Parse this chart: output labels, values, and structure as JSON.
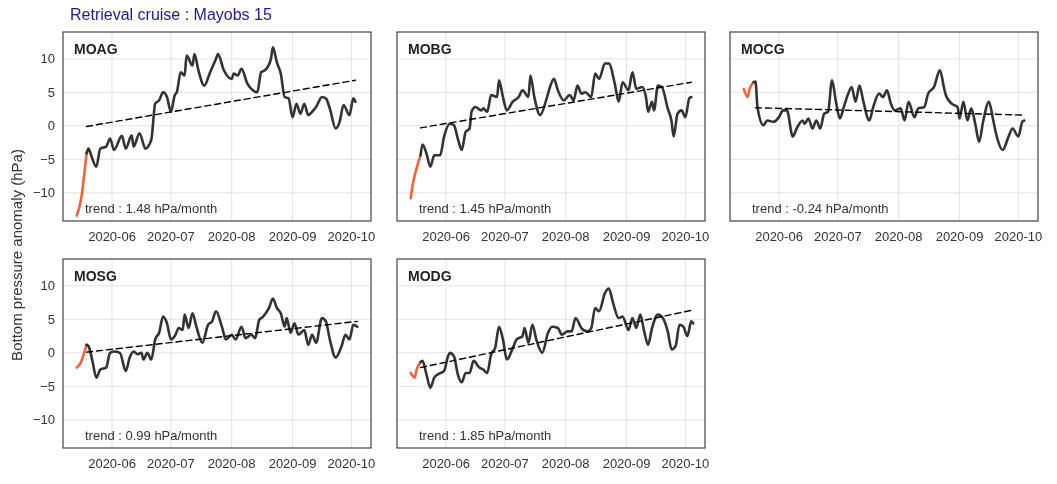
{
  "chart_data": [
    {
      "type": "line",
      "title": "MOAG",
      "subtitle": "Retrieval cruise : Mayobs 15",
      "ylabel": "Bottom pressure anomaly (hPa)",
      "annotations": [
        "trend : 1.48 hPa/month"
      ],
      "xlim": [
        "2020-05-07",
        "2020-10-11"
      ],
      "xticks": [
        "2020-06",
        "2020-07",
        "2020-08",
        "2020-09",
        "2020-10"
      ],
      "ylim": [
        -14.2,
        14
      ],
      "yticks": [
        {
          "value": -10,
          "label": "−10"
        },
        {
          "value": -5,
          "label": "−5"
        },
        0,
        5,
        10
      ],
      "grid": true,
      "marker": "none",
      "series": [
        {
          "color": "#f4623a",
          "x": [
            "2020-05-14",
            "2020-05-16",
            "2020-05-19"
          ],
          "values": [
            -13.4,
            -11.3,
            -4.1
          ]
        },
        {
          "color": "#333333",
          "x": [
            "2020-05-19",
            "2020-05-20",
            "2020-05-21",
            "2020-05-24",
            "2020-05-26",
            "2020-05-29",
            "2020-05-31",
            "2020-06-02",
            "2020-06-06",
            "2020-06-08",
            "2020-06-11",
            "2020-06-12",
            "2020-06-15",
            "2020-06-18",
            "2020-06-21",
            "2020-06-23",
            "2020-06-25",
            "2020-06-27",
            "2020-06-29",
            "2020-07-01",
            "2020-07-03",
            "2020-07-04",
            "2020-07-06",
            "2020-07-08",
            "2020-07-09",
            "2020-07-12",
            "2020-07-13",
            "2020-07-15",
            "2020-07-18",
            "2020-07-21",
            "2020-07-24",
            "2020-07-25",
            "2020-07-28",
            "2020-08-01",
            "2020-08-02",
            "2020-08-04",
            "2020-08-06",
            "2020-08-09",
            "2020-08-11",
            "2020-08-14",
            "2020-08-16",
            "2020-08-18",
            "2020-08-21",
            "2020-08-22",
            "2020-08-24",
            "2020-08-26",
            "2020-08-28",
            "2020-08-30",
            "2020-09-01",
            "2020-09-03",
            "2020-09-05",
            "2020-09-07",
            "2020-09-09",
            "2020-09-11",
            "2020-09-13",
            "2020-09-16",
            "2020-09-18",
            "2020-09-20",
            "2020-09-23",
            "2020-09-25",
            "2020-09-27",
            "2020-09-30",
            "2020-10-02",
            "2020-10-03"
          ],
          "values": [
            -4.1,
            -3.4,
            -4.1,
            -6.1,
            -3.4,
            -3.1,
            -1.9,
            -3.6,
            -1.5,
            -3.4,
            -1.4,
            -3.1,
            -1.1,
            -3.4,
            -2.1,
            3.3,
            3.8,
            5.0,
            4.3,
            2.1,
            4.6,
            5.0,
            8.0,
            7.5,
            10.5,
            9.0,
            10.7,
            8.3,
            6.0,
            8.0,
            10.0,
            10.7,
            8.3,
            7.0,
            7.8,
            7.5,
            8.5,
            6.3,
            5.5,
            5.0,
            8.0,
            8.3,
            10.0,
            11.7,
            9.5,
            7.8,
            4.3,
            4.1,
            1.3,
            3.3,
            1.8,
            3.3,
            1.6,
            2.1,
            2.8,
            4.3,
            4.1,
            2.6,
            -0.4,
            0.6,
            3.1,
            1.6,
            4.1,
            3.6
          ]
        },
        {
          "type": "line",
          "color": "#000000",
          "line_style": "dashed",
          "x": [
            "2020-05-19",
            "2020-10-03"
          ],
          "values": [
            -0.1,
            6.8
          ]
        }
      ]
    },
    {
      "type": "line",
      "title": "MOBG",
      "annotations": [
        "trend : 1.45 hPa/month"
      ],
      "xlim": [
        "2020-05-07",
        "2020-10-11"
      ],
      "xticks": [
        "2020-06",
        "2020-07",
        "2020-08",
        "2020-09",
        "2020-10"
      ],
      "ylim": [
        -14.2,
        14
      ],
      "yticks": [
        {
          "value": -10,
          "label": null
        },
        {
          "value": -5,
          "label": null
        },
        {
          "value": 0,
          "label": null
        },
        {
          "value": 5,
          "label": null
        },
        {
          "value": 10,
          "label": null
        }
      ],
      "tick_labels": "x",
      "grid": true,
      "marker": "none",
      "series": [
        {
          "color": "#f4623a",
          "x": [
            "2020-05-14",
            "2020-05-15",
            "2020-05-17",
            "2020-05-19"
          ],
          "values": [
            -10.8,
            -8.8,
            -6.3,
            -4.4
          ]
        },
        {
          "color": "#333333",
          "x": [
            "2020-05-19",
            "2020-05-20",
            "2020-05-22",
            "2020-05-24",
            "2020-05-26",
            "2020-05-29",
            "2020-05-31",
            "2020-06-03",
            "2020-06-05",
            "2020-06-07",
            "2020-06-09",
            "2020-06-11",
            "2020-06-13",
            "2020-06-14",
            "2020-06-16",
            "2020-06-19",
            "2020-06-20",
            "2020-06-22",
            "2020-06-24",
            "2020-06-27",
            "2020-06-28",
            "2020-06-30",
            "2020-07-02",
            "2020-07-05",
            "2020-07-08",
            "2020-07-10",
            "2020-07-13",
            "2020-07-14",
            "2020-07-16",
            "2020-07-19",
            "2020-07-22",
            "2020-07-24",
            "2020-07-26",
            "2020-07-28",
            "2020-07-31",
            "2020-08-03",
            "2020-08-05",
            "2020-08-07",
            "2020-08-09",
            "2020-08-11",
            "2020-08-14",
            "2020-08-16",
            "2020-08-18",
            "2020-08-21",
            "2020-08-23",
            "2020-08-26",
            "2020-08-28",
            "2020-08-30",
            "2020-09-02",
            "2020-09-04",
            "2020-09-06",
            "2020-09-09",
            "2020-09-11",
            "2020-09-12",
            "2020-09-14",
            "2020-09-15",
            "2020-09-17",
            "2020-09-19",
            "2020-09-22",
            "2020-09-24",
            "2020-09-25",
            "2020-09-27",
            "2020-09-29",
            "2020-10-01",
            "2020-10-03",
            "2020-10-04"
          ],
          "values": [
            -4.4,
            -2.8,
            -4.1,
            -6.1,
            -4.4,
            -4.4,
            -1.6,
            0.3,
            0.1,
            -1.9,
            -3.6,
            -0.9,
            -0.4,
            2.1,
            2.8,
            2.3,
            2.6,
            2.1,
            4.6,
            4.3,
            6.8,
            4.3,
            2.3,
            3.6,
            4.3,
            5.3,
            4.3,
            7.5,
            4.3,
            1.6,
            3.8,
            5.8,
            7.0,
            5.3,
            3.8,
            4.6,
            3.8,
            6.0,
            4.8,
            5.0,
            4.3,
            7.8,
            7.0,
            9.3,
            9.3,
            6.3,
            3.6,
            6.5,
            5.3,
            8.0,
            5.5,
            5.8,
            4.1,
            2.1,
            3.6,
            2.3,
            6.0,
            5.8,
            2.6,
            0.6,
            -1.6,
            1.8,
            2.3,
            1.3,
            4.1,
            4.3
          ]
        },
        {
          "type": "line",
          "color": "#000000",
          "line_style": "dashed",
          "x": [
            "2020-05-19",
            "2020-10-04"
          ],
          "values": [
            -0.3,
            6.5
          ]
        }
      ]
    },
    {
      "type": "line",
      "title": "MOCG",
      "annotations": [
        "trend : -0.24 hPa/month"
      ],
      "xlim": [
        "2020-05-07",
        "2020-10-11"
      ],
      "xticks": [
        "2020-06",
        "2020-07",
        "2020-08",
        "2020-09",
        "2020-10"
      ],
      "ylim": [
        -14.2,
        14
      ],
      "yticks": [
        {
          "value": -10,
          "label": null
        },
        {
          "value": -5,
          "label": null
        },
        {
          "value": 0,
          "label": null
        },
        {
          "value": 5,
          "label": null
        },
        {
          "value": 10,
          "label": null
        }
      ],
      "tick_labels": "x",
      "grid": true,
      "marker": "none",
      "series": [
        {
          "color": "#f4623a",
          "x": [
            "2020-05-14",
            "2020-05-16",
            "2020-05-17",
            "2020-05-19"
          ],
          "values": [
            5.5,
            4.3,
            5.5,
            6.5
          ]
        },
        {
          "color": "#333333",
          "x": [
            "2020-05-19",
            "2020-05-20",
            "2020-05-21",
            "2020-05-24",
            "2020-05-26",
            "2020-05-29",
            "2020-06-01",
            "2020-06-03",
            "2020-06-05",
            "2020-06-08",
            "2020-06-10",
            "2020-06-13",
            "2020-06-14",
            "2020-06-16",
            "2020-06-18",
            "2020-06-20",
            "2020-06-22",
            "2020-06-24",
            "2020-06-26",
            "2020-06-28",
            "2020-06-30",
            "2020-07-02",
            "2020-07-04",
            "2020-07-06",
            "2020-07-08",
            "2020-07-10",
            "2020-07-12",
            "2020-07-14",
            "2020-07-17",
            "2020-07-19",
            "2020-07-22",
            "2020-07-24",
            "2020-07-26",
            "2020-07-28",
            "2020-07-30",
            "2020-08-02",
            "2020-08-04",
            "2020-08-06",
            "2020-08-09",
            "2020-08-11",
            "2020-08-14",
            "2020-08-16",
            "2020-08-19",
            "2020-08-22",
            "2020-08-24",
            "2020-08-25",
            "2020-08-28",
            "2020-08-31",
            "2020-09-01",
            "2020-09-03",
            "2020-09-05",
            "2020-09-07",
            "2020-09-09",
            "2020-09-11",
            "2020-09-13",
            "2020-09-16",
            "2020-09-18",
            "2020-09-20",
            "2020-09-23",
            "2020-09-26",
            "2020-09-28",
            "2020-10-01",
            "2020-10-03",
            "2020-10-04"
          ],
          "values": [
            6.5,
            6.6,
            2.8,
            0.1,
            0.8,
            0.6,
            1.3,
            2.3,
            2.3,
            -1.6,
            -0.4,
            0.8,
            0.3,
            1.1,
            -0.4,
            0.8,
            -0.4,
            1.8,
            2.1,
            6.8,
            3.6,
            1.1,
            2.8,
            4.6,
            5.8,
            3.6,
            6.0,
            3.6,
            0.8,
            2.8,
            4.8,
            4.3,
            5.3,
            3.3,
            2.3,
            2.6,
            0.8,
            3.6,
            1.3,
            2.6,
            2.8,
            4.8,
            5.8,
            8.3,
            5.8,
            4.6,
            3.3,
            2.8,
            1.1,
            3.6,
            0.8,
            2.6,
            0.3,
            -2.4,
            0.6,
            3.6,
            1.1,
            -1.6,
            -3.6,
            -1.6,
            -0.4,
            -1.6,
            0.6,
            0.8
          ]
        },
        {
          "type": "line",
          "color": "#000000",
          "line_style": "dashed",
          "x": [
            "2020-05-20",
            "2020-10-04"
          ],
          "values": [
            2.7,
            1.6
          ]
        }
      ]
    },
    {
      "type": "line",
      "title": "MOSG",
      "annotations": [
        "trend : 0.99 hPa/month"
      ],
      "xlim": [
        "2020-05-07",
        "2020-10-11"
      ],
      "xticks": [
        "2020-06",
        "2020-07",
        "2020-08",
        "2020-09",
        "2020-10"
      ],
      "ylim": [
        -14.2,
        14
      ],
      "yticks": [
        {
          "value": -10,
          "label": "−10"
        },
        {
          "value": -5,
          "label": "−5"
        },
        0,
        5,
        10
      ],
      "grid": true,
      "marker": "none",
      "series": [
        {
          "color": "#f4623a",
          "x": [
            "2020-05-14",
            "2020-05-16",
            "2020-05-18",
            "2020-05-19"
          ],
          "values": [
            -2.2,
            -1.5,
            0.2,
            1.2
          ]
        },
        {
          "color": "#333333",
          "x": [
            "2020-05-19",
            "2020-05-20",
            "2020-05-22",
            "2020-05-24",
            "2020-05-26",
            "2020-05-29",
            "2020-05-31",
            "2020-06-02",
            "2020-06-05",
            "2020-06-08",
            "2020-06-10",
            "2020-06-12",
            "2020-06-14",
            "2020-06-16",
            "2020-06-17",
            "2020-06-19",
            "2020-06-21",
            "2020-06-23",
            "2020-06-25",
            "2020-06-27",
            "2020-06-29",
            "2020-07-01",
            "2020-07-03",
            "2020-07-05",
            "2020-07-07",
            "2020-07-08",
            "2020-07-10",
            "2020-07-12",
            "2020-07-14",
            "2020-07-17",
            "2020-07-20",
            "2020-07-22",
            "2020-07-24",
            "2020-07-27",
            "2020-07-29",
            "2020-08-01",
            "2020-08-03",
            "2020-08-06",
            "2020-08-08",
            "2020-08-11",
            "2020-08-13",
            "2020-08-15",
            "2020-08-17",
            "2020-08-20",
            "2020-08-22",
            "2020-08-24",
            "2020-08-26",
            "2020-08-28",
            "2020-08-29",
            "2020-08-31",
            "2020-09-02",
            "2020-09-04",
            "2020-09-07",
            "2020-09-09",
            "2020-09-11",
            "2020-09-13",
            "2020-09-16",
            "2020-09-18",
            "2020-09-20",
            "2020-09-23",
            "2020-09-26",
            "2020-09-28",
            "2020-09-30",
            "2020-10-02",
            "2020-10-04"
          ],
          "values": [
            1.2,
            1.0,
            -1.2,
            -3.7,
            -2.5,
            -2.2,
            0.0,
            0.2,
            0.0,
            -2.7,
            -0.7,
            0.2,
            -0.2,
            0.0,
            -1.0,
            0.0,
            -1.0,
            2.0,
            3.0,
            5.4,
            4.4,
            2.0,
            2.5,
            3.7,
            3.4,
            5.7,
            3.7,
            5.9,
            3.9,
            1.5,
            4.2,
            4.7,
            6.2,
            3.9,
            2.0,
            2.7,
            2.0,
            3.9,
            2.2,
            2.7,
            2.2,
            4.9,
            5.4,
            6.7,
            8.1,
            6.7,
            5.9,
            3.9,
            5.2,
            3.0,
            4.4,
            2.7,
            3.4,
            1.2,
            2.7,
            1.5,
            5.2,
            4.7,
            2.0,
            -0.7,
            1.0,
            2.7,
            2.0,
            4.2,
            3.9
          ]
        },
        {
          "type": "line",
          "color": "#000000",
          "line_style": "dashed",
          "x": [
            "2020-05-19",
            "2020-10-04"
          ],
          "values": [
            0.1,
            4.7
          ]
        }
      ]
    },
    {
      "type": "line",
      "title": "MODG",
      "annotations": [
        "trend : 1.85 hPa/month"
      ],
      "xlim": [
        "2020-05-07",
        "2020-10-11"
      ],
      "xticks": [
        "2020-06",
        "2020-07",
        "2020-08",
        "2020-09",
        "2020-10"
      ],
      "ylim": [
        -14.2,
        14
      ],
      "yticks": [
        {
          "value": -10,
          "label": null
        },
        {
          "value": -5,
          "label": null
        },
        {
          "value": 0,
          "label": null
        },
        {
          "value": 5,
          "label": null
        },
        {
          "value": 10,
          "label": null
        }
      ],
      "tick_labels": "x",
      "grid": true,
      "marker": "none",
      "series": [
        {
          "color": "#f4623a",
          "x": [
            "2020-05-14",
            "2020-05-16",
            "2020-05-17",
            "2020-05-19"
          ],
          "values": [
            -3.0,
            -3.7,
            -2.5,
            -1.4
          ]
        },
        {
          "color": "#333333",
          "x": [
            "2020-05-19",
            "2020-05-20",
            "2020-05-22",
            "2020-05-24",
            "2020-05-26",
            "2020-05-28",
            "2020-05-31",
            "2020-06-02",
            "2020-06-03",
            "2020-06-05",
            "2020-06-07",
            "2020-06-09",
            "2020-06-11",
            "2020-06-13",
            "2020-06-15",
            "2020-06-18",
            "2020-06-20",
            "2020-06-22",
            "2020-06-24",
            "2020-06-26",
            "2020-06-28",
            "2020-06-30",
            "2020-07-02",
            "2020-07-05",
            "2020-07-07",
            "2020-07-10",
            "2020-07-11",
            "2020-07-13",
            "2020-07-15",
            "2020-07-17",
            "2020-07-20",
            "2020-07-23",
            "2020-07-25",
            "2020-07-28",
            "2020-07-30",
            "2020-08-02",
            "2020-08-04",
            "2020-08-06",
            "2020-08-09",
            "2020-08-12",
            "2020-08-14",
            "2020-08-16",
            "2020-08-18",
            "2020-08-21",
            "2020-08-23",
            "2020-08-25",
            "2020-08-28",
            "2020-08-30",
            "2020-09-02",
            "2020-09-04",
            "2020-09-06",
            "2020-09-08",
            "2020-09-10",
            "2020-09-12",
            "2020-09-14",
            "2020-09-17",
            "2020-09-19",
            "2020-09-22",
            "2020-09-24",
            "2020-09-26",
            "2020-09-28",
            "2020-09-30",
            "2020-10-02",
            "2020-10-04",
            "2020-10-05"
          ],
          "values": [
            -1.4,
            -1.2,
            -3.2,
            -5.2,
            -3.7,
            -3.2,
            -2.7,
            -0.5,
            0.0,
            -0.5,
            -3.2,
            -4.4,
            -3.0,
            -3.0,
            -1.2,
            -2.2,
            -2.5,
            -3.0,
            -0.2,
            0.7,
            3.9,
            2.0,
            -1.0,
            0.7,
            2.0,
            2.5,
            3.7,
            1.5,
            4.2,
            2.0,
            0.0,
            3.0,
            3.9,
            3.7,
            2.7,
            3.2,
            3.2,
            5.2,
            3.7,
            3.2,
            3.7,
            6.7,
            6.2,
            8.9,
            9.6,
            7.6,
            5.2,
            5.4,
            3.4,
            5.2,
            3.7,
            5.7,
            3.2,
            1.2,
            3.7,
            5.7,
            5.4,
            3.2,
            0.5,
            1.0,
            4.2,
            3.9,
            2.5,
            4.7,
            4.4
          ]
        },
        {
          "type": "line",
          "color": "#000000",
          "line_style": "dashed",
          "x": [
            "2020-05-19",
            "2020-10-05"
          ],
          "values": [
            -2.2,
            6.4
          ]
        }
      ]
    }
  ]
}
